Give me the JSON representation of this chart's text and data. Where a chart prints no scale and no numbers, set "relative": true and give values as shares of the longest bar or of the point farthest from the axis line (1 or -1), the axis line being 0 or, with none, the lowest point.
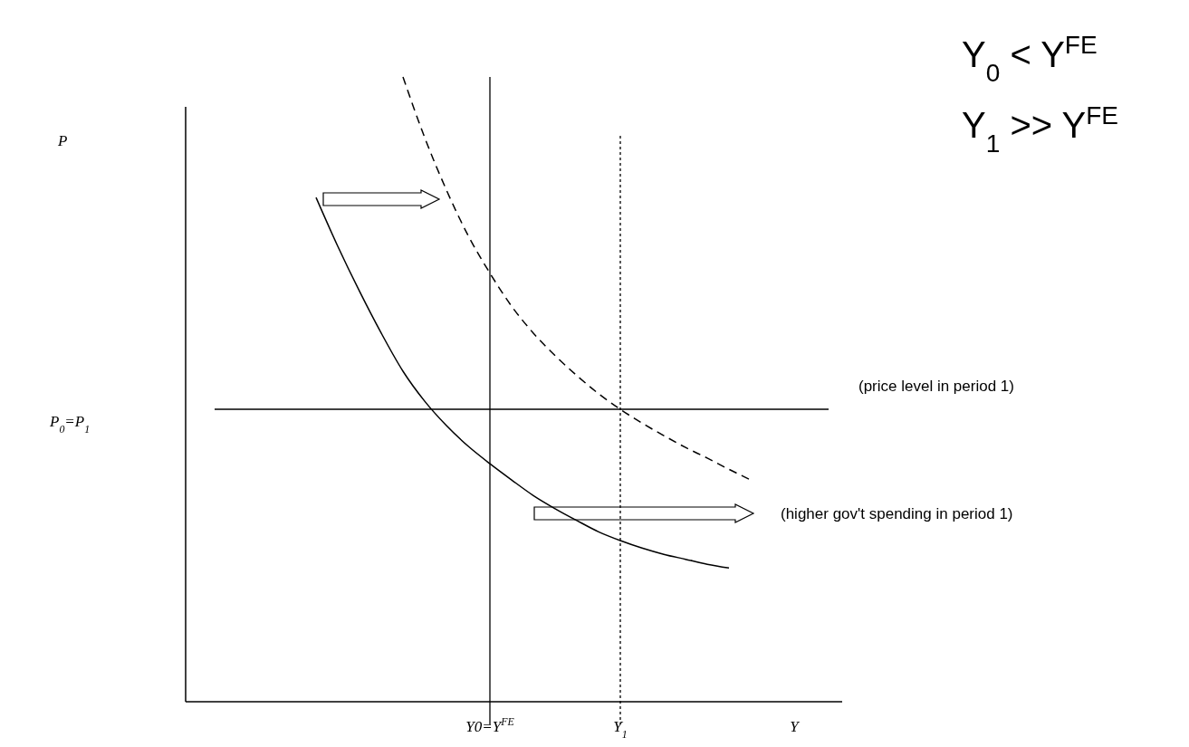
{
  "chart_data": {
    "type": "line",
    "relative": true,
    "categories": [
      null,
      null,
      null,
      null,
      null,
      null,
      null,
      null,
      null,
      null,
      null,
      null,
      null,
      null,
      "Y0=Y$^{FE}$",
      null,
      null,
      null,
      null,
      null,
      "Y$_{1}$",
      null,
      null,
      null,
      null,
      null,
      null,
      null,
      "Y",
      null,
      null
    ],
    "series": [
      {
        "color": "#000000",
        "line_style": "solid",
        "values": [
          null,
          null,
          null,
          null,
          null,
          null,
          0.807,
          0.729,
          0.657,
          0.59,
          0.529,
          0.481,
          0.442,
          0.409,
          0.381,
          0.355,
          0.33,
          0.309,
          0.29,
          0.272,
          0.258,
          0.246,
          0.236,
          0.228,
          0.22,
          0.214,
          null,
          null,
          null,
          null,
          null
        ]
      },
      {
        "color": "#000000",
        "line_style": "dashed",
        "values": [
          null,
          null,
          null,
          null,
          null,
          null,
          null,
          null,
          null,
          null,
          1,
          0.903,
          0.819,
          0.746,
          0.686,
          0.633,
          0.59,
          0.554,
          0.522,
          0.493,
          0.468,
          0.446,
          0.426,
          0.407,
          0.39,
          0.372,
          0.355,
          null,
          null,
          null,
          null
        ]
      }
    ],
    "ref_lines": [
      {
        "axis": "x",
        "value": "Y0=Y$^{FE}$",
        "color": "#000000",
        "line_style": "solid"
      },
      {
        "axis": "x",
        "value": "Y$_{1}$",
        "color": "#000000",
        "line_style": "dotted"
      },
      {
        "axis": "y",
        "value": 0.468,
        "color": "#000000",
        "line_style": "solid",
        "label": "(price level in period 1)"
      }
    ],
    "annotations": [
      "P",
      "P$_{0}$=P$_{1}$",
      "(higher gov't spending in period 1)",
      "Y$_{0}$ < Y$^{FE}$",
      "Y$_{1}$ >> Y$^{FE}$"
    ]
  }
}
